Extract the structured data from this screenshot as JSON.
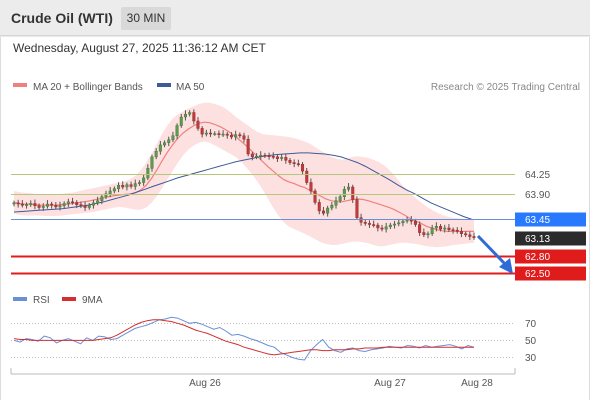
{
  "header": {
    "title": "Crude Oil (WTI)",
    "timeframe": "30 MIN",
    "datetime": "Wednesday, August 27, 2025 11:36:12 AM CET"
  },
  "legend": {
    "ma20_label": "MA 20 + Bollinger Bands",
    "ma20_color": "#f08080",
    "ma50_label": "MA 50",
    "ma50_color": "#3d5a99",
    "credit": "Research © 2025 Trading Central"
  },
  "rsi_legend": {
    "rsi_label": "RSI",
    "rsi_color": "#6a8fd6",
    "ma9_label": "9MA",
    "ma9_color": "#d32f2f"
  },
  "chart_data": [
    {
      "type": "candlestick",
      "title": "Crude Oil (WTI)",
      "timeframe": "30 MIN",
      "x_ticks": [
        "Aug 26",
        "Aug 27",
        "Aug 28"
      ],
      "ylim": [
        62.35,
        65.55
      ],
      "levels": [
        {
          "value": 64.25,
          "label": "64.25",
          "style": "olive-line",
          "color": "#b6c77c",
          "text_color": "#555"
        },
        {
          "value": 63.9,
          "label": "63.90",
          "style": "olive-line",
          "color": "#b6c77c",
          "text_color": "#555"
        },
        {
          "value": 63.45,
          "label": "63.45",
          "style": "blue-badge",
          "color": "#2979ff",
          "text_color": "#ffffff"
        },
        {
          "value": 63.13,
          "label": "63.13",
          "style": "current-price",
          "color": "#2b2b2b",
          "text_color": "#ffffff"
        },
        {
          "value": 62.8,
          "label": "62.80",
          "style": "red-badge",
          "color": "#e01b1b",
          "text_color": "#ffffff"
        },
        {
          "value": 62.5,
          "label": "62.50",
          "style": "red-badge",
          "color": "#e01b1b",
          "text_color": "#ffffff"
        }
      ],
      "close": [
        63.74,
        63.72,
        63.7,
        63.71,
        63.73,
        63.69,
        63.66,
        63.68,
        63.72,
        63.7,
        63.67,
        63.69,
        63.73,
        63.76,
        63.75,
        63.71,
        63.69,
        63.66,
        63.7,
        63.74,
        63.78,
        63.85,
        63.9,
        63.95,
        63.99,
        64.05,
        64.02,
        64.06,
        64.03,
        64.08,
        64.1,
        64.18,
        64.35,
        64.55,
        64.65,
        64.76,
        64.8,
        64.85,
        64.92,
        65.1,
        65.25,
        65.3,
        65.33,
        65.18,
        65.05,
        64.95,
        64.97,
        64.96,
        64.96,
        64.94,
        64.95,
        64.93,
        64.9,
        64.94,
        64.92,
        64.86,
        64.6,
        64.55,
        64.56,
        64.58,
        64.57,
        64.56,
        64.55,
        64.52,
        64.54,
        64.49,
        64.45,
        64.43,
        64.42,
        64.3,
        64.1,
        63.95,
        63.75,
        63.6,
        63.56,
        63.65,
        63.7,
        63.78,
        63.85,
        63.98,
        64.02,
        63.8,
        63.48,
        63.4,
        63.38,
        63.36,
        63.35,
        63.3,
        63.28,
        63.32,
        63.35,
        63.37,
        63.39,
        63.42,
        63.44,
        63.42,
        63.36,
        63.22,
        63.18,
        63.2,
        63.3,
        63.33,
        63.28,
        63.3,
        63.27,
        63.26,
        63.24,
        63.2,
        63.18,
        63.15,
        63.13
      ],
      "bollinger_upper": [
        63.95,
        63.93,
        63.92,
        63.91,
        63.9,
        63.89,
        63.88,
        63.88,
        63.89,
        63.9,
        63.91,
        63.92,
        63.94,
        63.96,
        63.98,
        64.0,
        64.02,
        64.04,
        64.06,
        64.08,
        64.1,
        64.12,
        64.16,
        64.22,
        64.32,
        64.45,
        64.6,
        64.78,
        64.95,
        65.1,
        65.22,
        65.3,
        65.35,
        65.4,
        65.44,
        65.48,
        65.5,
        65.5,
        65.48,
        65.45,
        65.4,
        65.33,
        65.25,
        65.18,
        65.12,
        65.05,
        64.99,
        64.95,
        64.94,
        64.93,
        64.92,
        64.91,
        64.9,
        64.88,
        64.85,
        64.82,
        64.78,
        64.72,
        64.66,
        64.6,
        64.55,
        64.52,
        64.5,
        64.52,
        64.55,
        64.56,
        64.55,
        64.53,
        64.5,
        64.46,
        64.4,
        64.32,
        64.22,
        64.1,
        64.0,
        63.9,
        63.82,
        63.75,
        63.68,
        63.62,
        63.57,
        63.53,
        63.5,
        63.48,
        63.47,
        63.46,
        63.45,
        63.45
      ],
      "bollinger_lower": [
        63.55,
        63.53,
        63.52,
        63.52,
        63.52,
        63.52,
        63.51,
        63.51,
        63.51,
        63.52,
        63.53,
        63.54,
        63.55,
        63.56,
        63.57,
        63.58,
        63.6,
        63.62,
        63.64,
        63.66,
        63.67,
        63.66,
        63.64,
        63.62,
        63.62,
        63.66,
        63.74,
        63.86,
        64.0,
        64.15,
        64.3,
        64.45,
        64.58,
        64.68,
        64.75,
        64.8,
        64.82,
        64.8,
        64.75,
        64.7,
        64.65,
        64.6,
        64.54,
        64.46,
        64.36,
        64.25,
        64.12,
        63.98,
        63.82,
        63.66,
        63.52,
        63.4,
        63.32,
        63.28,
        63.24,
        63.2,
        63.15,
        63.1,
        63.05,
        63.02,
        63.0,
        63.0,
        63.02,
        63.04,
        63.06,
        63.06,
        63.05,
        63.03,
        63.0,
        62.98,
        62.98,
        63.0,
        63.02,
        63.04,
        63.04,
        63.03,
        63.02,
        63.0,
        62.98,
        62.97,
        62.96,
        62.97,
        62.98,
        63.0,
        63.01,
        63.02,
        63.03,
        63.04
      ],
      "ma20": [
        63.75,
        63.73,
        63.72,
        63.72,
        63.71,
        63.7,
        63.7,
        63.7,
        63.7,
        63.71,
        63.72,
        63.73,
        63.74,
        63.76,
        63.77,
        63.79,
        63.81,
        63.83,
        63.85,
        63.87,
        63.88,
        63.89,
        63.9,
        63.92,
        63.97,
        64.05,
        64.17,
        64.32,
        64.48,
        64.63,
        64.76,
        64.88,
        64.97,
        65.04,
        65.1,
        65.14,
        65.16,
        65.15,
        65.12,
        65.08,
        65.03,
        64.97,
        64.9,
        64.82,
        64.74,
        64.65,
        64.56,
        64.47,
        64.38,
        64.3,
        64.22,
        64.15,
        64.11,
        64.08,
        64.04,
        64.01,
        63.96,
        63.91,
        63.86,
        63.81,
        63.78,
        63.76,
        63.76,
        63.78,
        63.8,
        63.81,
        63.8,
        63.78,
        63.75,
        63.72,
        63.69,
        63.66,
        63.62,
        63.57,
        63.52,
        63.46,
        63.42,
        63.38,
        63.33,
        63.3,
        63.27,
        63.25,
        63.24,
        63.24,
        63.24,
        63.24,
        63.24,
        63.24
      ],
      "ma50": [
        63.58,
        63.59,
        63.6,
        63.61,
        63.62,
        63.63,
        63.64,
        63.66,
        63.68,
        63.7,
        63.73,
        63.76,
        63.8,
        63.84,
        63.88,
        63.93,
        63.98,
        64.03,
        64.08,
        64.13,
        64.18,
        64.22,
        64.26,
        64.3,
        64.34,
        64.38,
        64.42,
        64.46,
        64.49,
        64.52,
        64.55,
        64.57,
        64.59,
        64.6,
        64.61,
        64.62,
        64.62,
        64.61,
        64.6,
        64.58,
        64.55,
        64.5,
        64.45,
        64.38,
        64.3,
        64.22,
        64.14,
        64.05,
        63.97,
        63.9,
        63.82,
        63.74,
        63.68,
        63.62,
        63.56,
        63.5,
        63.45
      ]
    },
    {
      "type": "line",
      "title": "RSI",
      "series": [
        {
          "name": "RSI",
          "color": "#6a8fd6",
          "values": [
            50,
            48,
            52,
            51,
            49,
            55,
            53,
            47,
            50,
            52,
            49,
            46,
            53,
            50,
            55,
            54,
            51,
            52,
            56,
            60,
            64,
            66,
            68,
            71,
            74,
            75,
            77,
            76,
            73,
            70,
            71,
            69,
            66,
            63,
            65,
            61,
            56,
            57,
            55,
            52,
            50,
            47,
            44,
            42,
            36,
            33,
            30,
            28,
            27,
            38,
            45,
            51,
            42,
            38,
            36,
            40,
            41,
            38,
            37,
            39,
            40,
            41,
            43,
            42,
            41,
            44,
            43,
            41,
            44,
            42,
            43,
            44,
            45,
            43,
            40,
            44,
            42
          ]
        },
        {
          "name": "9MA",
          "color": "#d32f2f",
          "values": [
            52,
            51,
            51,
            50,
            50,
            50,
            50,
            50,
            50,
            50,
            50,
            50,
            50,
            50,
            51,
            52,
            53,
            56,
            60,
            64,
            68,
            71,
            73,
            74,
            74,
            73,
            72,
            70,
            68,
            65,
            62,
            60,
            58,
            55,
            52,
            49,
            47,
            45,
            42,
            40,
            38,
            36,
            34,
            33,
            34,
            35,
            36,
            37,
            38,
            39,
            39,
            38,
            38,
            39,
            39,
            39,
            40,
            40,
            41,
            41,
            41,
            42,
            42,
            42,
            42,
            42,
            42,
            42,
            42,
            42,
            42,
            42,
            42,
            42,
            42,
            42,
            42
          ]
        }
      ],
      "y_ticks": [
        "70",
        "50",
        "30"
      ],
      "ylim": [
        20,
        82
      ]
    }
  ]
}
